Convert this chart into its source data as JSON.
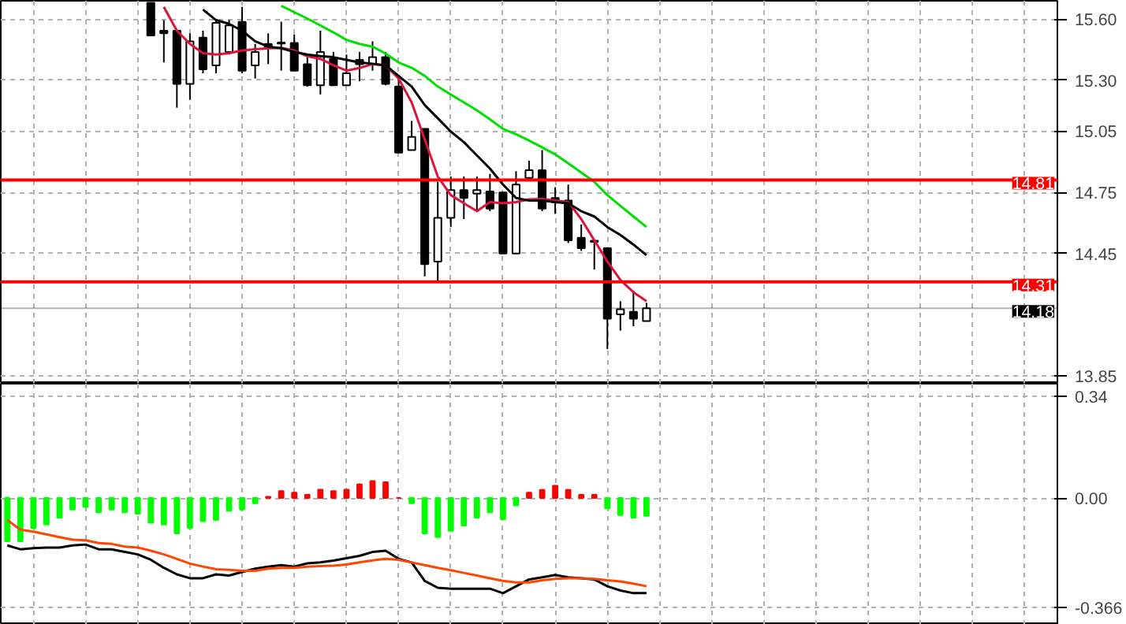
{
  "chart_data": [
    {
      "type": "candlestick",
      "categories": [
        null,
        null,
        null,
        null,
        null,
        null,
        null,
        null,
        null,
        null,
        null,
        null,
        null,
        null,
        null,
        null,
        null,
        null,
        null,
        null,
        null,
        null,
        null,
        null,
        null,
        null,
        null,
        null,
        null,
        null,
        null,
        null,
        null,
        null,
        null,
        null,
        null,
        null,
        null,
        null,
        null,
        null,
        null,
        null,
        null,
        null,
        null,
        null,
        null,
        null,
        null,
        null,
        null,
        null,
        null,
        null,
        null,
        null,
        null,
        null,
        null,
        null,
        null,
        null,
        null,
        null,
        null,
        null,
        null,
        null,
        null,
        null,
        null,
        null,
        null,
        null,
        null,
        null,
        null,
        null,
        null
      ],
      "ohlc": [
        null,
        null,
        null,
        null,
        null,
        null,
        null,
        null,
        null,
        null,
        null,
        [
          15.68,
          15.68,
          15.52,
          15.52
        ],
        [
          15.543,
          15.595,
          15.387,
          15.53
        ],
        [
          15.543,
          15.543,
          15.165,
          15.282
        ],
        [
          15.282,
          15.53,
          15.204,
          15.491
        ],
        [
          15.509,
          15.543,
          15.334,
          15.353
        ],
        [
          15.373,
          15.595,
          15.334,
          15.582
        ],
        [
          15.439,
          15.595,
          15.426,
          15.569
        ],
        [
          15.587,
          15.66,
          15.334,
          15.347
        ],
        [
          15.373,
          15.478,
          15.308,
          15.439
        ],
        [
          15.478,
          15.53,
          15.379,
          15.465
        ],
        [
          15.485,
          15.587,
          15.347,
          15.48
        ],
        [
          15.483,
          15.525,
          15.347,
          15.347
        ],
        [
          15.379,
          15.413,
          15.269,
          15.275
        ],
        [
          15.275,
          15.543,
          15.23,
          15.439
        ],
        [
          15.405,
          15.439,
          15.275,
          15.275
        ],
        [
          15.275,
          15.426,
          15.275,
          15.334
        ],
        [
          15.4,
          15.439,
          15.295,
          15.379
        ],
        [
          15.379,
          15.491,
          15.347,
          15.413
        ],
        [
          15.413,
          15.439,
          15.275,
          15.282
        ],
        [
          15.269,
          15.308,
          14.944,
          14.944
        ],
        [
          14.957,
          15.1,
          14.957,
          15.022
        ],
        [
          15.061,
          15.061,
          14.337,
          14.397
        ],
        [
          14.41,
          14.801,
          14.311,
          14.624
        ],
        [
          14.624,
          14.827,
          14.579,
          14.761
        ],
        [
          14.761,
          14.827,
          14.618,
          14.722
        ],
        [
          14.743,
          14.827,
          14.657,
          14.761
        ],
        [
          14.754,
          14.84,
          14.657,
          14.67
        ],
        [
          14.749,
          14.749,
          14.449,
          14.449
        ],
        [
          14.449,
          14.853,
          14.449,
          14.788
        ],
        [
          14.821,
          14.905,
          14.814,
          14.858
        ],
        [
          14.858,
          14.957,
          14.657,
          14.67
        ],
        [
          14.722,
          14.775,
          14.644,
          14.702
        ],
        [
          14.709,
          14.788,
          14.501,
          14.514
        ],
        [
          14.527,
          14.592,
          14.462,
          14.475
        ],
        [
          14.512,
          14.519,
          14.371,
          14.506
        ],
        [
          14.475,
          14.475,
          13.98,
          14.129
        ],
        [
          14.15,
          14.215,
          14.071,
          14.176
        ],
        [
          14.163,
          14.267,
          14.092,
          14.129
        ],
        [
          14.118,
          14.207,
          14.118,
          14.18
        ],
        null,
        null,
        null,
        null,
        null,
        null,
        null,
        null,
        null,
        null,
        null,
        null,
        null,
        null,
        null,
        null,
        null,
        null,
        null,
        null,
        null,
        null,
        null,
        null,
        null,
        null,
        null,
        null,
        null,
        null,
        null
      ],
      "series": [
        {
          "type": "line",
          "color": "#dc143c",
          "values": [
            null,
            null,
            null,
            null,
            null,
            null,
            null,
            null,
            null,
            null,
            null,
            null,
            15.66,
            15.543,
            15.478,
            15.433,
            15.426,
            15.433,
            15.446,
            15.452,
            15.457,
            15.459,
            15.446,
            15.418,
            15.405,
            15.373,
            15.347,
            15.36,
            15.379,
            15.373,
            15.308,
            15.191,
            15.009,
            14.827,
            14.736,
            14.696,
            14.657,
            14.702,
            14.696,
            14.702,
            14.715,
            14.717,
            14.709,
            14.702,
            14.618,
            14.514,
            14.41,
            14.319,
            14.259,
            14.215,
            null,
            null,
            null,
            null,
            null,
            null,
            null,
            null,
            null,
            null,
            null,
            null,
            null,
            null,
            null,
            null,
            null,
            null,
            null,
            null,
            null,
            null,
            null,
            null,
            null,
            null,
            null,
            null,
            null,
            null,
            null
          ]
        },
        {
          "type": "line",
          "color": "#000000",
          "values": [
            null,
            null,
            null,
            null,
            null,
            null,
            null,
            null,
            null,
            null,
            null,
            null,
            null,
            null,
            null,
            15.647,
            15.595,
            15.577,
            15.543,
            15.491,
            15.465,
            15.457,
            15.439,
            15.426,
            15.418,
            15.413,
            15.4,
            15.387,
            15.381,
            15.373,
            15.321,
            15.269,
            15.178,
            15.113,
            15.048,
            14.996,
            14.931,
            14.866,
            14.788,
            14.722,
            14.709,
            14.709,
            14.702,
            14.696,
            14.657,
            14.631,
            14.579,
            14.54,
            14.493,
            14.441,
            null,
            null,
            null,
            null,
            null,
            null,
            null,
            null,
            null,
            null,
            null,
            null,
            null,
            null,
            null,
            null,
            null,
            null,
            null,
            null,
            null,
            null,
            null,
            null,
            null,
            null,
            null,
            null,
            null,
            null,
            null
          ]
        },
        {
          "type": "line",
          "color": "#00e000",
          "values": [
            null,
            null,
            null,
            null,
            null,
            null,
            null,
            null,
            null,
            null,
            null,
            null,
            null,
            null,
            null,
            null,
            null,
            null,
            null,
            null,
            null,
            15.665,
            15.634,
            15.603,
            15.569,
            15.535,
            15.498,
            15.478,
            15.465,
            15.431,
            15.387,
            15.361,
            15.321,
            15.269,
            15.23,
            15.191,
            15.152,
            15.108,
            15.061,
            15.035,
            15.004,
            14.97,
            14.936,
            14.892,
            14.847,
            14.801,
            14.736,
            14.683,
            14.631,
            14.579,
            null,
            null,
            null,
            null,
            null,
            null,
            null,
            null,
            null,
            null,
            null,
            null,
            null,
            null,
            null,
            null,
            null,
            null,
            null,
            null,
            null,
            null,
            null,
            null,
            null,
            null,
            null,
            null,
            null,
            null,
            null
          ]
        }
      ],
      "ylim": [
        13.81,
        15.69
      ],
      "yticks": [
        {
          "value": 15.6,
          "label": "15.60"
        },
        {
          "value": 15.3,
          "label": "15.30"
        },
        {
          "value": 15.05,
          "label": "15.05"
        },
        {
          "value": 14.75,
          "label": "14.75"
        },
        {
          "value": 14.45,
          "label": "14.45"
        },
        {
          "value": 13.85,
          "label": "13.85"
        }
      ],
      "ref_lines": [
        {
          "axis": "y",
          "value": 14.81,
          "label": "14.81",
          "color": "#ff0000"
        },
        {
          "axis": "y",
          "value": 14.31,
          "label": "14.31",
          "color": "#ff0000"
        },
        {
          "axis": "y",
          "value": 14.18,
          "label": "14.18",
          "color": "#000000"
        }
      ],
      "grid": true,
      "tick_labels": "y"
    },
    {
      "type": "bar",
      "categories": [
        null,
        null,
        null,
        null,
        null,
        null,
        null,
        null,
        null,
        null,
        null,
        null,
        null,
        null,
        null,
        null,
        null,
        null,
        null,
        null,
        null,
        null,
        null,
        null,
        null,
        null,
        null,
        null,
        null,
        null,
        null,
        null,
        null,
        null,
        null,
        null,
        null,
        null,
        null,
        null,
        null,
        null,
        null,
        null,
        null,
        null,
        null,
        null,
        null,
        null,
        null,
        null,
        null,
        null,
        null,
        null,
        null,
        null,
        null,
        null,
        null,
        null,
        null,
        null,
        null,
        null,
        null,
        null,
        null,
        null,
        null,
        null,
        null,
        null,
        null,
        null,
        null,
        null,
        null,
        null,
        null
      ],
      "series": [
        {
          "type": "bar",
          "values": [
            -0.145,
            -0.145,
            -0.101,
            -0.089,
            -0.066,
            -0.039,
            -0.03,
            -0.048,
            -0.039,
            -0.048,
            -0.053,
            -0.083,
            -0.089,
            -0.119,
            -0.101,
            -0.078,
            -0.074,
            -0.043,
            -0.039,
            -0.018,
            0.004,
            0.023,
            0.018,
            0.011,
            0.028,
            0.023,
            0.028,
            0.046,
            0.057,
            0.053,
            0,
            -0.018,
            -0.119,
            -0.131,
            -0.11,
            -0.092,
            -0.066,
            -0.048,
            -0.071,
            -0.025,
            0.018,
            0.027,
            0.041,
            0.027,
            0.011,
            0.011,
            -0.035,
            -0.057,
            -0.066,
            -0.06,
            null,
            null,
            null,
            null,
            null,
            null,
            null,
            null,
            null,
            null,
            null,
            null,
            null,
            null,
            null,
            null,
            null,
            null,
            null,
            null,
            null,
            null,
            null,
            null,
            null,
            null,
            null,
            null,
            null,
            null,
            null
          ],
          "colors": [
            "#00ff00",
            "#00ff00",
            "#00ff00",
            "#00ff00",
            "#00ff00",
            "#00ff00",
            "#00ff00",
            "#00ff00",
            "#00ff00",
            "#00ff00",
            "#00ff00",
            "#00ff00",
            "#00ff00",
            "#00ff00",
            "#00ff00",
            "#00ff00",
            "#00ff00",
            "#00ff00",
            "#00ff00",
            "#00ff00",
            "#ff0000",
            "#ff0000",
            "#ff0000",
            "#ff0000",
            "#ff0000",
            "#ff0000",
            "#ff0000",
            "#ff0000",
            "#ff0000",
            "#ff0000",
            "#ff0000",
            "#00ff00",
            "#00ff00",
            "#00ff00",
            "#00ff00",
            "#00ff00",
            "#00ff00",
            "#00ff00",
            "#00ff00",
            "#00ff00",
            "#ff0000",
            "#ff0000",
            "#ff0000",
            "#ff0000",
            "#ff0000",
            "#ff0000",
            "#00ff00",
            "#00ff00",
            "#00ff00",
            "#00ff00",
            null,
            null,
            null,
            null,
            null,
            null,
            null,
            null,
            null,
            null,
            null,
            null,
            null,
            null,
            null,
            null,
            null,
            null,
            null,
            null,
            null,
            null,
            null,
            null,
            null,
            null,
            null,
            null,
            null,
            null,
            null
          ]
        },
        {
          "type": "line",
          "color": "#000000",
          "values": [
            -0.159,
            -0.172,
            -0.168,
            -0.166,
            -0.166,
            -0.159,
            -0.156,
            -0.172,
            -0.172,
            -0.181,
            -0.189,
            -0.207,
            -0.234,
            -0.256,
            -0.269,
            -0.269,
            -0.256,
            -0.26,
            -0.248,
            -0.237,
            -0.23,
            -0.225,
            -0.23,
            -0.219,
            -0.216,
            -0.21,
            -0.202,
            -0.194,
            -0.181,
            -0.177,
            -0.204,
            -0.216,
            -0.278,
            -0.301,
            -0.304,
            -0.304,
            -0.304,
            -0.304,
            -0.319,
            -0.296,
            -0.273,
            -0.266,
            -0.258,
            -0.266,
            -0.269,
            -0.273,
            -0.296,
            -0.31,
            -0.319,
            -0.319,
            null,
            null,
            null,
            null,
            null,
            null,
            null,
            null,
            null,
            null,
            null,
            null,
            null,
            null,
            null,
            null,
            null,
            null,
            null,
            null,
            null,
            null,
            null,
            null,
            null,
            null,
            null,
            null,
            null,
            null,
            null
          ]
        },
        {
          "type": "line",
          "color": "#ff4500",
          "values": [
            -0.074,
            -0.106,
            -0.113,
            -0.122,
            -0.131,
            -0.14,
            -0.142,
            -0.151,
            -0.154,
            -0.163,
            -0.166,
            -0.177,
            -0.189,
            -0.204,
            -0.22,
            -0.23,
            -0.239,
            -0.241,
            -0.244,
            -0.244,
            -0.237,
            -0.234,
            -0.234,
            -0.23,
            -0.228,
            -0.227,
            -0.223,
            -0.216,
            -0.209,
            -0.204,
            -0.207,
            -0.216,
            -0.225,
            -0.234,
            -0.242,
            -0.251,
            -0.26,
            -0.269,
            -0.278,
            -0.283,
            -0.283,
            -0.276,
            -0.271,
            -0.269,
            -0.269,
            -0.271,
            -0.276,
            -0.28,
            -0.287,
            -0.296,
            null,
            null,
            null,
            null,
            null,
            null,
            null,
            null,
            null,
            null,
            null,
            null,
            null,
            null,
            null,
            null,
            null,
            null,
            null,
            null,
            null,
            null,
            null,
            null,
            null,
            null,
            null,
            null,
            null,
            null,
            null
          ]
        }
      ],
      "ylim": [
        -0.425,
        0.383
      ],
      "yticks": [
        {
          "value": 0.34,
          "label": "0.34"
        },
        {
          "value": 0,
          "label": "0.00"
        },
        {
          "value": -0.366,
          "label": "-0.366"
        }
      ],
      "grid": true,
      "tick_labels": "y"
    }
  ]
}
